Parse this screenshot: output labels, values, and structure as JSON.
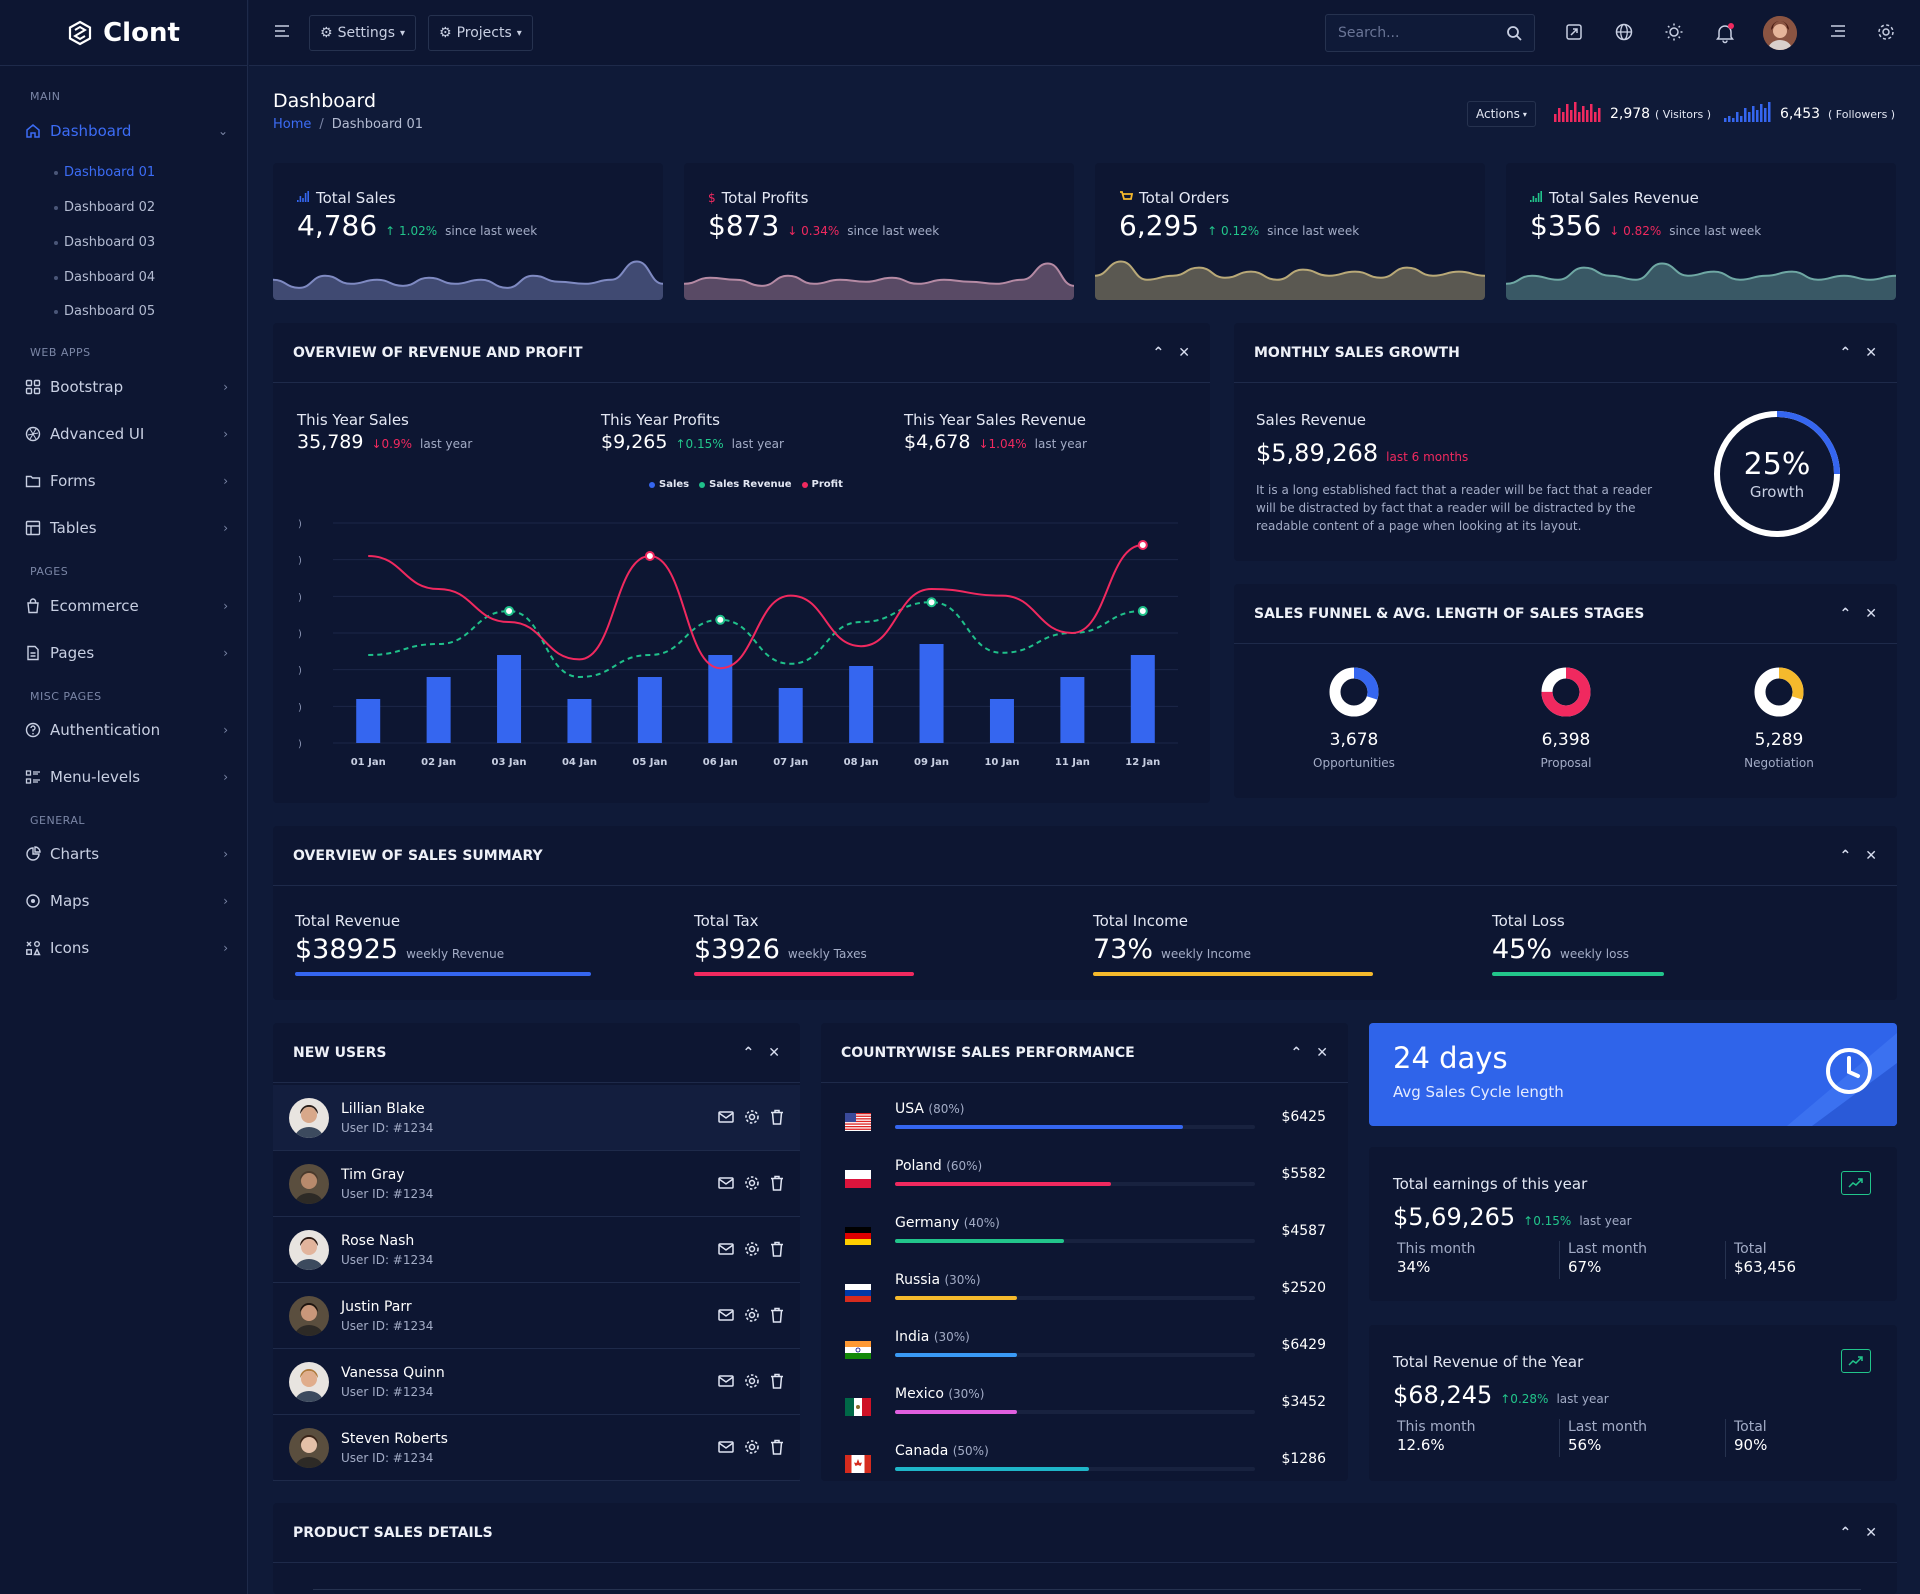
{
  "app": {
    "name": "Clont"
  },
  "sidebar": {
    "cat_main": "MAIN",
    "dashboard": "Dashboard",
    "subs": [
      "Dashboard 01",
      "Dashboard 02",
      "Dashboard 03",
      "Dashboard 04",
      "Dashboard 05"
    ],
    "cat_webapps": "WEB APPS",
    "bootstrap": "Bootstrap",
    "advanced_ui": "Advanced UI",
    "forms": "Forms",
    "tables": "Tables",
    "cat_pages": "PAGES",
    "ecommerce": "Ecommerce",
    "pages": "Pages",
    "cat_misc": "MISC PAGES",
    "authentication": "Authentication",
    "menu_levels": "Menu-levels",
    "cat_general": "GENERAL",
    "charts": "Charts",
    "maps": "Maps",
    "icons": "Icons"
  },
  "topbar": {
    "settings": "Settings",
    "projects": "Projects",
    "search_placeholder": "Search..."
  },
  "page": {
    "title": "Dashboard",
    "crumb_home": "Home",
    "crumb_sep": "/",
    "crumb_current": "Dashboard 01",
    "actions": "Actions",
    "visitors_value": "2,978",
    "visitors_label": "( Visitors )",
    "followers_value": "6,453",
    "followers_label": "( Followers )"
  },
  "stats": [
    {
      "title": "Total Sales",
      "value": "4,786",
      "change": "↑ 1.02%",
      "dir": "up",
      "note": "since last week",
      "color": "#7f8ac2",
      "icon": "bar-chart-icon"
    },
    {
      "title": "Total Profits",
      "value": "$873",
      "change": "↓ 0.34%",
      "dir": "down",
      "note": "since last week",
      "color": "#b58aa4",
      "icon": "dollar-icon"
    },
    {
      "title": "Total Orders",
      "value": "6,295",
      "change": "↑ 0.12%",
      "dir": "up",
      "note": "since last week",
      "color": "#b9a978",
      "icon": "cart-icon"
    },
    {
      "title": "Total Sales Revenue",
      "value": "$356",
      "change": "↓ 0.82%",
      "dir": "down",
      "note": "since last week",
      "color": "#6fa8a4",
      "icon": "signal-icon"
    }
  ],
  "overview": {
    "title": "OVERVIEW OF REVENUE AND PROFIT",
    "kpis": [
      {
        "label": "This Year Sales",
        "value": "35,789",
        "change": "↓0.9%",
        "dir": "down",
        "note": "last year"
      },
      {
        "label": "This Year Profits",
        "value": "$9,265",
        "change": "↑0.15%",
        "dir": "up",
        "note": "last year"
      },
      {
        "label": "This Year Sales Revenue",
        "value": "$4,678",
        "change": "↓1.04%",
        "dir": "down",
        "note": "last year"
      }
    ]
  },
  "chart_data": {
    "type": "bar",
    "categories": [
      "01 Jan",
      "02 Jan",
      "03 Jan",
      "04 Jan",
      "05 Jan",
      "06 Jan",
      "07 Jan",
      "08 Jan",
      "09 Jan",
      "10 Jan",
      "11 Jan",
      "12 Jan"
    ],
    "series": [
      {
        "name": "Sales",
        "type": "bar",
        "color": "#3566f0",
        "values": [
          2,
          3,
          4,
          2,
          3,
          4,
          2.5,
          3.5,
          4.5,
          2,
          3,
          4
        ]
      },
      {
        "name": "Sales Revenue",
        "type": "line",
        "style": "dashed",
        "color": "#1fc08a",
        "values": [
          4,
          4.5,
          6,
          3,
          4,
          5.6,
          3.6,
          5.5,
          6.4,
          4.1,
          5,
          6
        ]
      },
      {
        "name": "Profit",
        "type": "line",
        "color": "#f0295f",
        "values": [
          8.5,
          7,
          5.5,
          3.8,
          8.5,
          3.4,
          6.7,
          4.4,
          7,
          6.7,
          5,
          9
        ]
      }
    ],
    "ylim": [
      0,
      10
    ],
    "legend": "top-center",
    "grid": true
  },
  "monthly": {
    "title": "MONTHLY SALES GROWTH",
    "label": "Sales Revenue",
    "value": "$5,89,268",
    "note": "last 6 months",
    "text": "It is a long established fact that a reader will be fact that a reader will be distracted by fact that a reader will be distracted by the readable content of a page when looking at its layout.",
    "growth_pct": "25%",
    "growth_label": "Growth",
    "growth": 0.25
  },
  "funnel": {
    "title": "SALES FUNNEL & AVG. LENGTH OF SALES STAGES",
    "items": [
      {
        "value": "3,678",
        "label": "Opportunities",
        "color": "#3566f0",
        "frac": 0.3
      },
      {
        "value": "6,398",
        "label": "Proposal",
        "color": "#f0295f",
        "frac": 0.75
      },
      {
        "value": "5,289",
        "label": "Negotiation",
        "color": "#f5b92c",
        "frac": 0.3
      }
    ]
  },
  "summary": {
    "title": "OVERVIEW OF SALES SUMMARY",
    "items": [
      {
        "label": "Total Revenue",
        "value": "$38925",
        "note": "weekly Revenue",
        "color": "#3566f0",
        "fill": 0.74
      },
      {
        "label": "Total Tax",
        "value": "$3926",
        "note": "weekly Taxes",
        "color": "#f0295f",
        "fill": 0.55
      },
      {
        "label": "Total Income",
        "value": "73%",
        "note": "weekly Income",
        "color": "#f5b92c",
        "fill": 0.7
      },
      {
        "label": "Total Loss",
        "value": "45%",
        "note": "weekly loss",
        "color": "#22c58b",
        "fill": 0.43
      }
    ]
  },
  "users": {
    "title": "NEW USERS",
    "list": [
      {
        "name": "Lillian Blake",
        "id": "User ID: #1234",
        "skin": "#d8a88a",
        "hair": "#2a1d18"
      },
      {
        "name": "Tim Gray",
        "id": "User ID: #1234",
        "skin": "#b88a6c",
        "hair": "#4a3a2c"
      },
      {
        "name": "Rose Nash",
        "id": "User ID: #1234",
        "skin": "#e2b49c",
        "hair": "#2e1a12"
      },
      {
        "name": "Justin Parr",
        "id": "User ID: #1234",
        "skin": "#c9977a",
        "hair": "#1e140f"
      },
      {
        "name": "Vanessa Quinn",
        "id": "User ID: #1234",
        "skin": "#e0ad8c",
        "hair": "#b07a3c"
      },
      {
        "name": "Steven Roberts",
        "id": "User ID: #1234",
        "skin": "#e4c0a8",
        "hair": "#3a2418"
      }
    ]
  },
  "countries": {
    "title": "COUNTRYWISE SALES PERFORMANCE",
    "list": [
      {
        "name": "USA",
        "pct": "(80%)",
        "amount": "$6425",
        "color": "#3566f0",
        "fill": 0.8,
        "flag": "usa-flag"
      },
      {
        "name": "Poland",
        "pct": "(60%)",
        "amount": "$5582",
        "color": "#f0295f",
        "fill": 0.6,
        "flag": "poland-flag"
      },
      {
        "name": "Germany",
        "pct": "(40%)",
        "amount": "$4587",
        "color": "#22c58b",
        "fill": 0.47,
        "flag": "germany-flag"
      },
      {
        "name": "Russia",
        "pct": "(30%)",
        "amount": "$2520",
        "color": "#f5b92c",
        "fill": 0.34,
        "flag": "russia-flag"
      },
      {
        "name": "India",
        "pct": "(30%)",
        "amount": "$6429",
        "color": "#3a9af5",
        "fill": 0.34,
        "flag": "india-flag"
      },
      {
        "name": "Mexico",
        "pct": "(30%)",
        "amount": "$3452",
        "color": "#e05fe0",
        "fill": 0.34,
        "flag": "mexico-flag"
      },
      {
        "name": "Canada",
        "pct": "(50%)",
        "amount": "$1286",
        "color": "#1fb6c9",
        "fill": 0.54,
        "flag": "canada-flag"
      }
    ]
  },
  "cycle": {
    "value": "24 days",
    "label": "Avg Sales Cycle length"
  },
  "earnings": {
    "title": "Total earnings of this year",
    "value": "$5,69,265",
    "change": "↑0.15%",
    "note": "last year",
    "cols": [
      {
        "label": "This month",
        "value": "34%"
      },
      {
        "label": "Last month",
        "value": "67%"
      },
      {
        "label": "Total",
        "value": "$63,456"
      }
    ]
  },
  "revenue": {
    "title": "Total Revenue of the Year",
    "value": "$68,245",
    "change": "↑0.28%",
    "note": "last year",
    "cols": [
      {
        "label": "This month",
        "value": "12.6%"
      },
      {
        "label": "Last month",
        "value": "56%"
      },
      {
        "label": "Total",
        "value": "90%"
      }
    ]
  },
  "product": {
    "title": "PRODUCT SALES DETAILS"
  }
}
